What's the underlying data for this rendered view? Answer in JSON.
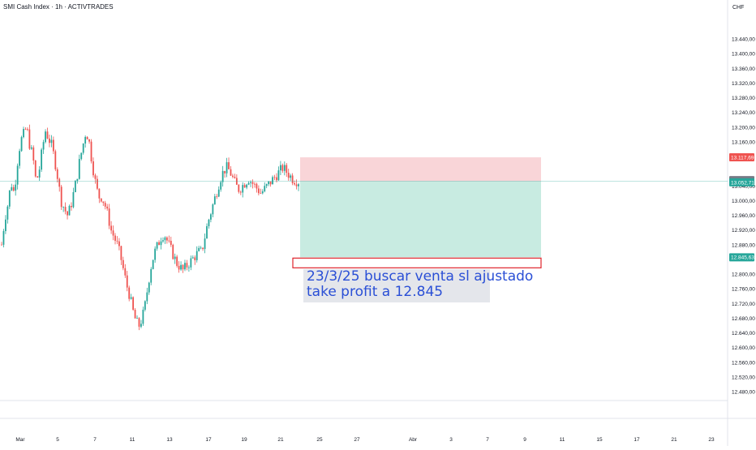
{
  "header": {
    "title": "SMI Cash Index · 1h · ACTIVTRADES",
    "currency": "CHF"
  },
  "note": {
    "line1": "23/3/25 buscar venta sl ajustado",
    "line2": "take profit a 12.845"
  },
  "price_tags": {
    "stop": "13.117,69",
    "current_upper": "13.052,72",
    "current_lower": "13.052,71",
    "target": "12.845,63"
  },
  "colors": {
    "up": "#26a69a",
    "down": "#ef5350",
    "risk_zone": "#f9d5d8",
    "reward_zone": "#c8ebe1",
    "note_text": "#2a4fd6"
  },
  "chart_data": {
    "type": "candlestick",
    "title": "SMI Cash Index · 1h · ACTIVTRADES",
    "ylabel": "CHF",
    "ylim": [
      12450,
      13480
    ],
    "y_ticks": [
      "13.440,00",
      "13.400,00",
      "13.360,00",
      "13.320,00",
      "13.280,00",
      "13.240,00",
      "13.200,00",
      "13.160,00",
      "13.040,00",
      "13.000,00",
      "12.960,00",
      "12.920,00",
      "12.880,00",
      "12.800,00",
      "12.760,00",
      "12.720,00",
      "12.680,00",
      "12.640,00",
      "12.600,00",
      "12.560,00",
      "12.520,00",
      "12.480,00"
    ],
    "x_ticks": [
      "Mar",
      "5",
      "7",
      "11",
      "13",
      "17",
      "19",
      "21",
      "25",
      "27",
      "Abr",
      "3",
      "7",
      "9",
      "11",
      "15",
      "17",
      "21",
      "23"
    ],
    "close_path": [
      [
        12880,
        12950,
        12990,
        13050,
        13020,
        13100,
        13160,
        13180,
        13200,
        13150,
        13120,
        13050,
        13080,
        13140,
        13190,
        13170,
        13150,
        13110,
        13060,
        13000,
        12980,
        12960,
        12980,
        13020,
        13060,
        13110,
        13150,
        13190,
        13160,
        13100,
        13050,
        13010
      ],
      [
        13010,
        12990,
        12960,
        12920,
        12900,
        12880,
        12850,
        12810,
        12770,
        12740,
        12700,
        12670,
        12660,
        12680,
        12720,
        12780,
        12830,
        12860,
        12880,
        12900,
        12910,
        12890,
        12870,
        12850,
        12830,
        12820,
        12810,
        12820,
        12830,
        12840,
        12850,
        12860
      ],
      [
        12860,
        12900,
        12940,
        12970,
        13000,
        13030,
        13060,
        13080,
        13090,
        13080,
        13060,
        13040,
        13030,
        13040,
        13050,
        13060,
        13050,
        13040,
        13030,
        13020,
        13030,
        13040,
        13050,
        13060,
        13070,
        13080,
        13090,
        13080,
        13070,
        13060,
        13055,
        13052
      ]
    ],
    "position": {
      "type": "short",
      "entry": 13052.71,
      "stop_loss": 13117.69,
      "take_profit": 12845.63,
      "start_x": "21",
      "end_x": "9"
    },
    "annotation": "23/3/25 buscar venta sl ajustado take profit a 12.845",
    "grid": false,
    "legend": "none"
  }
}
